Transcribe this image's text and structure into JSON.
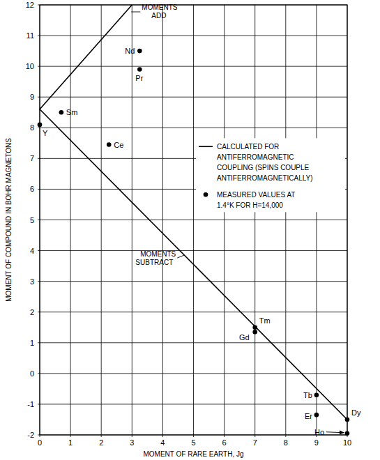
{
  "chart_data": {
    "type": "scatter",
    "x_label": "MOMENT OF RARE EARTH, Jg",
    "y_label": "MOMENT OF COMPOUND IN BOHR MAGNETONS",
    "xlim": [
      0,
      10
    ],
    "ylim": [
      -2,
      12
    ],
    "xticks": [
      0,
      1,
      2,
      3,
      4,
      5,
      6,
      7,
      8,
      9,
      10
    ],
    "yticks": [
      -2,
      -1,
      0,
      1,
      2,
      3,
      4,
      5,
      6,
      7,
      8,
      9,
      10,
      11,
      12
    ],
    "grid": true,
    "legend": "upper right",
    "annotations": [
      "MOMENTS ADD",
      "MOMENTS SUBTRACT"
    ],
    "series": [
      {
        "name": "CALCULATED FOR ANTIFERROMAGNETIC COUPLING (SPINS COUPLE ANTIFERROMAGNETICALLY)",
        "type": "line",
        "color": "#000000",
        "line_style": "solid",
        "marker": "none",
        "x": [
          3,
          0,
          10
        ],
        "values": [
          12,
          8.6,
          -1.5
        ]
      },
      {
        "name": "MEASURED VALUES AT 1.4°K FOR H=14,000",
        "type": "scatter",
        "color": "#000000",
        "marker": "circle",
        "labels": [
          "Y",
          "Sm",
          "Ce",
          "Nd",
          "Pr",
          "Tm",
          "Gd",
          "Tb",
          "Er",
          "Ho",
          "Dy"
        ],
        "x": [
          0,
          0.7,
          2.25,
          3.25,
          3.25,
          7,
          7,
          9,
          9,
          10,
          10
        ],
        "values": [
          8.1,
          8.5,
          7.45,
          10.5,
          9.9,
          1.5,
          1.35,
          -0.7,
          -1.35,
          -1.95,
          -1.5
        ]
      }
    ]
  }
}
